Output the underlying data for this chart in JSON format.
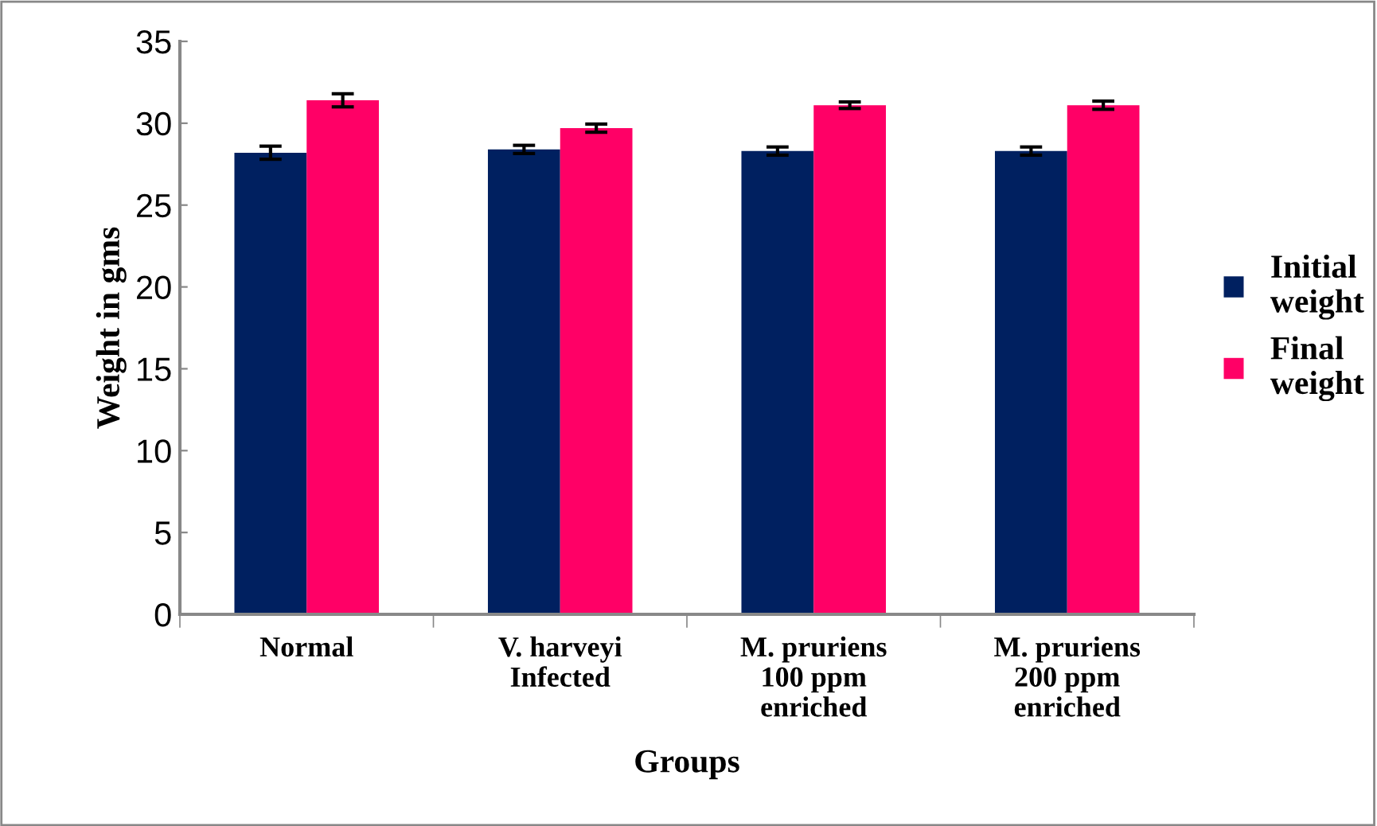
{
  "chart_data": {
    "type": "bar",
    "xlabel": "Groups",
    "ylabel": "Weight in gms",
    "categories": [
      "Normal",
      "V. harveyi\nInfected",
      "M. pruriens\n100 ppm\nenriched",
      "M. pruriens\n200 ppm\nenriched"
    ],
    "series": [
      {
        "name": "Initial\nweight",
        "color": "#002060",
        "values": [
          28.2,
          28.4,
          28.3,
          28.3
        ],
        "errors": [
          0.4,
          0.25,
          0.25,
          0.25
        ]
      },
      {
        "name": "Final\nweight",
        "color": "#ff0066",
        "values": [
          31.4,
          29.7,
          31.1,
          31.1
        ],
        "errors": [
          0.4,
          0.25,
          0.2,
          0.25
        ]
      }
    ],
    "ylim": [
      0,
      35
    ],
    "yticks": [
      0,
      5,
      10,
      15,
      20,
      25,
      30,
      35
    ],
    "grid": false,
    "legend": "right"
  }
}
